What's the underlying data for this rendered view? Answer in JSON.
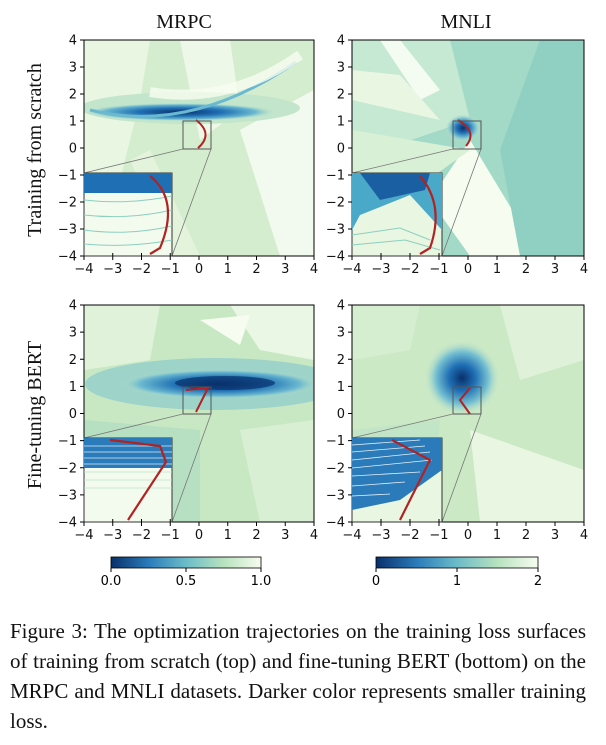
{
  "figure": {
    "column_titles": [
      "MRPC",
      "MNLI"
    ],
    "row_titles": [
      "Training from scratch",
      "Fine-tuning BERT"
    ],
    "axis_ticks": [
      "−4",
      "−3",
      "−2",
      "−1",
      "0",
      "1",
      "2",
      "3",
      "4"
    ],
    "inset_ticks": [
      "−4",
      "−3",
      "−2",
      "−1"
    ],
    "colorbars": [
      {
        "ticks": [
          "0.0",
          "0.5",
          "1.0"
        ],
        "min": 0,
        "max": 1
      },
      {
        "ticks": [
          "0",
          "1",
          "2"
        ],
        "min": 0,
        "max": 2
      }
    ],
    "colors": {
      "dark": "#08519c",
      "mid": "#4aa8c8",
      "light": "#e9f6df",
      "bg": "#cbe9c5",
      "trajectory": "#b22222"
    }
  },
  "chart_data": [
    {
      "type": "heatmap",
      "title": "MRPC",
      "row": "Training from scratch",
      "xlim": [
        -4,
        4
      ],
      "ylim": [
        -4,
        4
      ],
      "colorbar_range": [
        0.0,
        1.0
      ]
    },
    {
      "type": "heatmap",
      "title": "MNLI",
      "row": "Training from scratch",
      "xlim": [
        -4,
        4
      ],
      "ylim": [
        -4,
        4
      ],
      "colorbar_range": [
        0,
        2
      ]
    },
    {
      "type": "heatmap",
      "title": "MRPC",
      "row": "Fine-tuning BERT",
      "xlim": [
        -4,
        4
      ],
      "ylim": [
        -4,
        4
      ],
      "colorbar_range": [
        0.0,
        1.0
      ]
    },
    {
      "type": "heatmap",
      "title": "MNLI",
      "row": "Fine-tuning BERT",
      "xlim": [
        -4,
        4
      ],
      "ylim": [
        -4,
        4
      ],
      "colorbar_range": [
        0,
        2
      ]
    }
  ],
  "caption": "Figure 3:  The optimization trajectories on the training loss surfaces of training from scratch (top) and fine-tuning BERT (bottom) on the MRPC and MNLI datasets. Darker color represents smaller training loss."
}
